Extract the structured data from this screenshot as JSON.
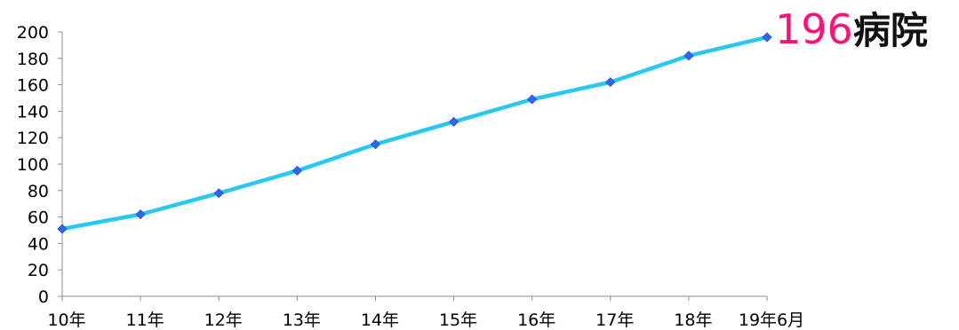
{
  "chart_data": {
    "type": "line",
    "categories": [
      "10年",
      "11年",
      "12年",
      "13年",
      "14年",
      "15年",
      "16年",
      "17年",
      "18年",
      "19年6月"
    ],
    "values": [
      51,
      62,
      78,
      95,
      115,
      132,
      149,
      162,
      182,
      196
    ],
    "ylim": [
      0,
      200
    ],
    "yticks": [
      0,
      20,
      40,
      60,
      80,
      100,
      120,
      140,
      160,
      180,
      200
    ],
    "grid": false,
    "title": "",
    "xlabel": "",
    "ylabel": "",
    "line_color": "#29c8f0",
    "marker_color": "#3366ee"
  },
  "callout": {
    "number": "196",
    "unit": "病院",
    "number_color": "#ff1177"
  }
}
